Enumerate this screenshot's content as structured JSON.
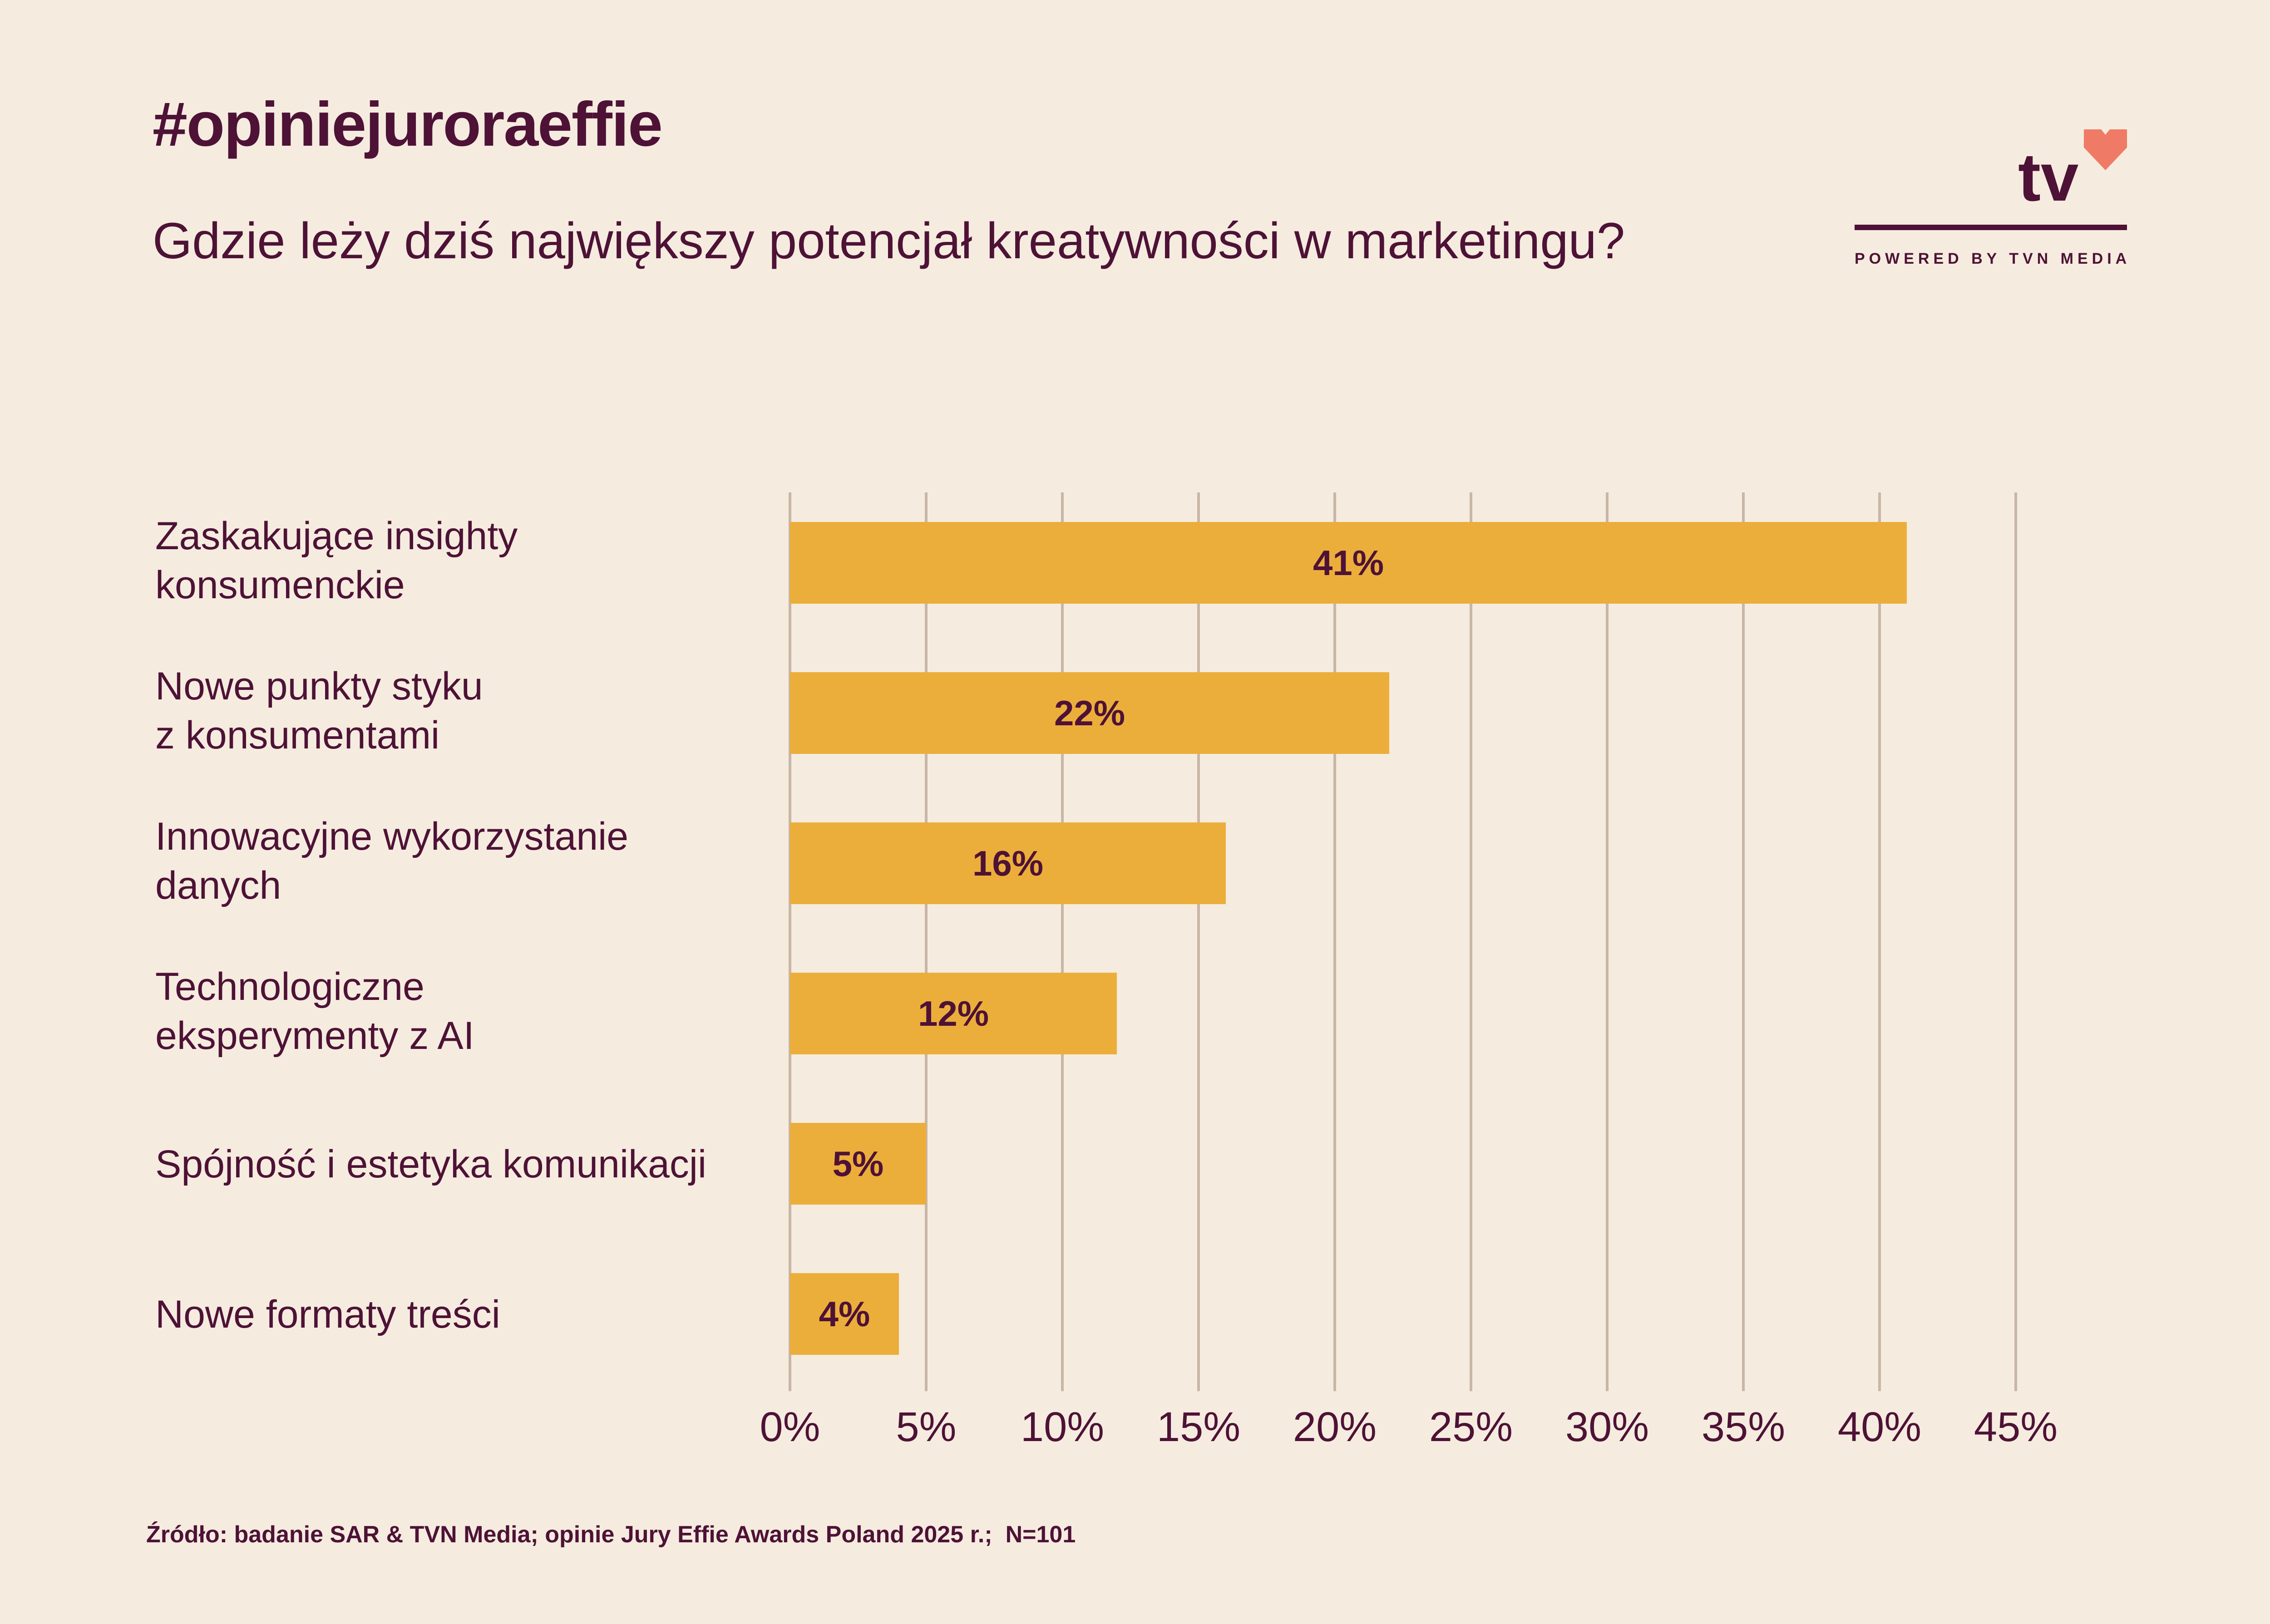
{
  "header": {
    "hashtag": "#opiniejuroraeffie",
    "question": "Gdzie leży dziś największy potencjał kreatywności w marketingu?"
  },
  "logo": {
    "text": "tv",
    "powered_by": "POWERED BY TVN MEDIA",
    "heart_color": "#ef7b66"
  },
  "chart_data": {
    "type": "bar",
    "orientation": "horizontal",
    "title": "Gdzie leży dziś największy potencjał kreatywności w marketingu?",
    "categories": [
      [
        "Zaskakujące insighty",
        "konsumenckie"
      ],
      [
        "Nowe punkty styku",
        "z konsumentami"
      ],
      [
        "Innowacyjne wykorzystanie",
        "danych"
      ],
      [
        "Technologiczne",
        "eksperymenty z AI"
      ],
      [
        "Spójność i estetyka komunikacji"
      ],
      [
        "Nowe formaty treści"
      ]
    ],
    "values": [
      41,
      22,
      16,
      12,
      5,
      4
    ],
    "data_labels": [
      "41%",
      "22%",
      "16%",
      "12%",
      "5%",
      "4%"
    ],
    "xlim": [
      0,
      45
    ],
    "xticks": [
      0,
      5,
      10,
      15,
      20,
      25,
      30,
      35,
      40,
      45
    ],
    "xtick_labels": [
      "0%",
      "5%",
      "10%",
      "15%",
      "20%",
      "25%",
      "30%",
      "35%",
      "40%",
      "45%"
    ],
    "grid": true,
    "bar_color": "#ecae3a",
    "grid_color": "#c9b6a6",
    "text_color": "#4e1236"
  },
  "footer": {
    "source": "Źródło: badanie SAR & TVN Media; opinie Jury Effie Awards Poland 2025 r.;  N=101"
  }
}
